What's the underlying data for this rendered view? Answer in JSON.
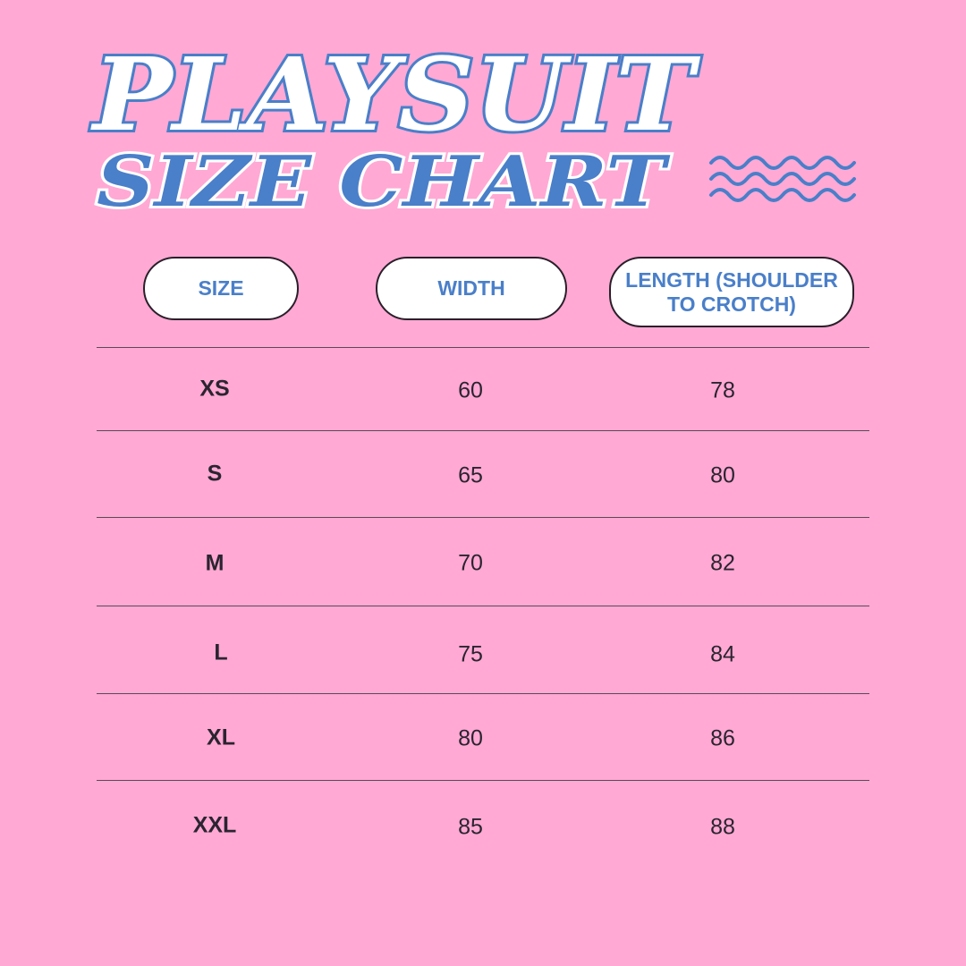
{
  "title": {
    "line1": "PLAYSUIT",
    "line2": "SIZE CHART"
  },
  "colors": {
    "background": "#FFA9D4",
    "accent": "#4A7FC9",
    "text": "#2b2430"
  },
  "decoration": "wavy-lines-icon",
  "table": {
    "headers": [
      "SIZE",
      "WIDTH",
      "LENGTH (SHOULDER TO CROTCH)"
    ],
    "rows": [
      {
        "size": "XS",
        "width": "60",
        "length": "78"
      },
      {
        "size": "S",
        "width": "65",
        "length": "80"
      },
      {
        "size": "M",
        "width": "70",
        "length": "82"
      },
      {
        "size": "L",
        "width": "75",
        "length": "84"
      },
      {
        "size": "XL",
        "width": "80",
        "length": "86"
      },
      {
        "size": "XXL",
        "width": "85",
        "length": "88"
      }
    ]
  }
}
